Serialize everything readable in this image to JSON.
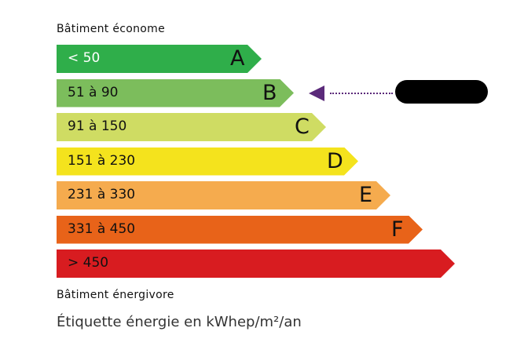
{
  "top_caption": "Bâtiment économe",
  "bottom_caption": "Bâtiment énergivore",
  "footer": "Étiquette énergie en kWhep/m²/an",
  "indicator_color": "#5b2a7a",
  "classes": [
    {
      "range": "< 50",
      "letter": "A",
      "color": "#2fae4a"
    },
    {
      "range": "51 à 90",
      "letter": "B",
      "color": "#7cbd5c"
    },
    {
      "range": "91 à 150",
      "letter": "C",
      "color": "#cfdc63"
    },
    {
      "range": "151 à 230",
      "letter": "D",
      "color": "#f4e31d"
    },
    {
      "range": "231 à 330",
      "letter": "E",
      "color": "#f5ab4e"
    },
    {
      "range": "331 à 450",
      "letter": "F",
      "color": "#e86319"
    },
    {
      "range": "> 450",
      "letter": "",
      "color": "#d81c20"
    }
  ],
  "selected_class": "B"
}
